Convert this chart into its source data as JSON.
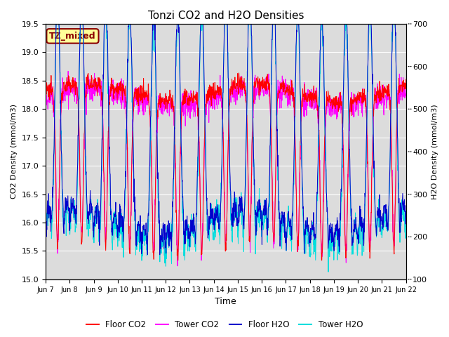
{
  "title": "Tonzi CO2 and H2O Densities",
  "xlabel": "Time",
  "ylabel_left": "CO2 Density (mmol/m3)",
  "ylabel_right": "H2O Density (mmol/m3)",
  "ylim_left": [
    15.0,
    19.5
  ],
  "ylim_right": [
    100,
    700
  ],
  "yticks_left": [
    15.0,
    15.5,
    16.0,
    16.5,
    17.0,
    17.5,
    18.0,
    18.5,
    19.0,
    19.5
  ],
  "yticks_right": [
    100,
    200,
    300,
    400,
    500,
    600,
    700
  ],
  "xtick_labels": [
    "Jun 7",
    "Jun 8",
    "Jun 9",
    "Jun 10",
    "Jun 11",
    "Jun 12",
    "Jun 13",
    "Jun 14",
    "Jun 15",
    "Jun 16",
    "Jun 17",
    "Jun 18",
    "Jun 19",
    "Jun 20",
    "Jun 21",
    "Jun 22"
  ],
  "annotation_text": "TZ_mixed",
  "annotation_color": "#8B0000",
  "annotation_bg": "#FFFF99",
  "floor_co2_color": "#FF0000",
  "tower_co2_color": "#FF00FF",
  "floor_h2o_color": "#0000CC",
  "tower_h2o_color": "#00DDDD",
  "bg_color": "#DCDCDC",
  "legend_labels": [
    "Floor CO2",
    "Tower CO2",
    "Floor H2O",
    "Tower H2O"
  ],
  "n_days": 15,
  "n_points_per_day": 96
}
